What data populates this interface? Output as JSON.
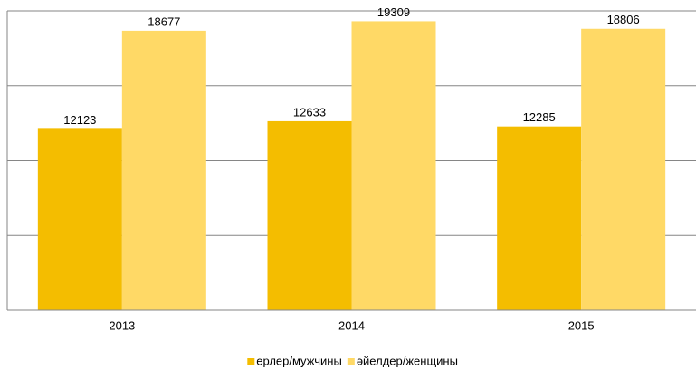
{
  "chart_data": {
    "type": "bar",
    "categories": [
      "2013",
      "2014",
      "2015"
    ],
    "series": [
      {
        "name": "ерлер/мужчины",
        "color": "#f4bd00",
        "values": [
          12123,
          12633,
          12285
        ]
      },
      {
        "name": "әйелдер/женщины",
        "color": "#ffd966",
        "values": [
          18677,
          19309,
          18806
        ]
      }
    ],
    "ylim": [
      0,
      20000
    ],
    "yticks": [
      0,
      5000,
      10000,
      15000,
      20000
    ],
    "grid": true,
    "legend": "bottom"
  }
}
